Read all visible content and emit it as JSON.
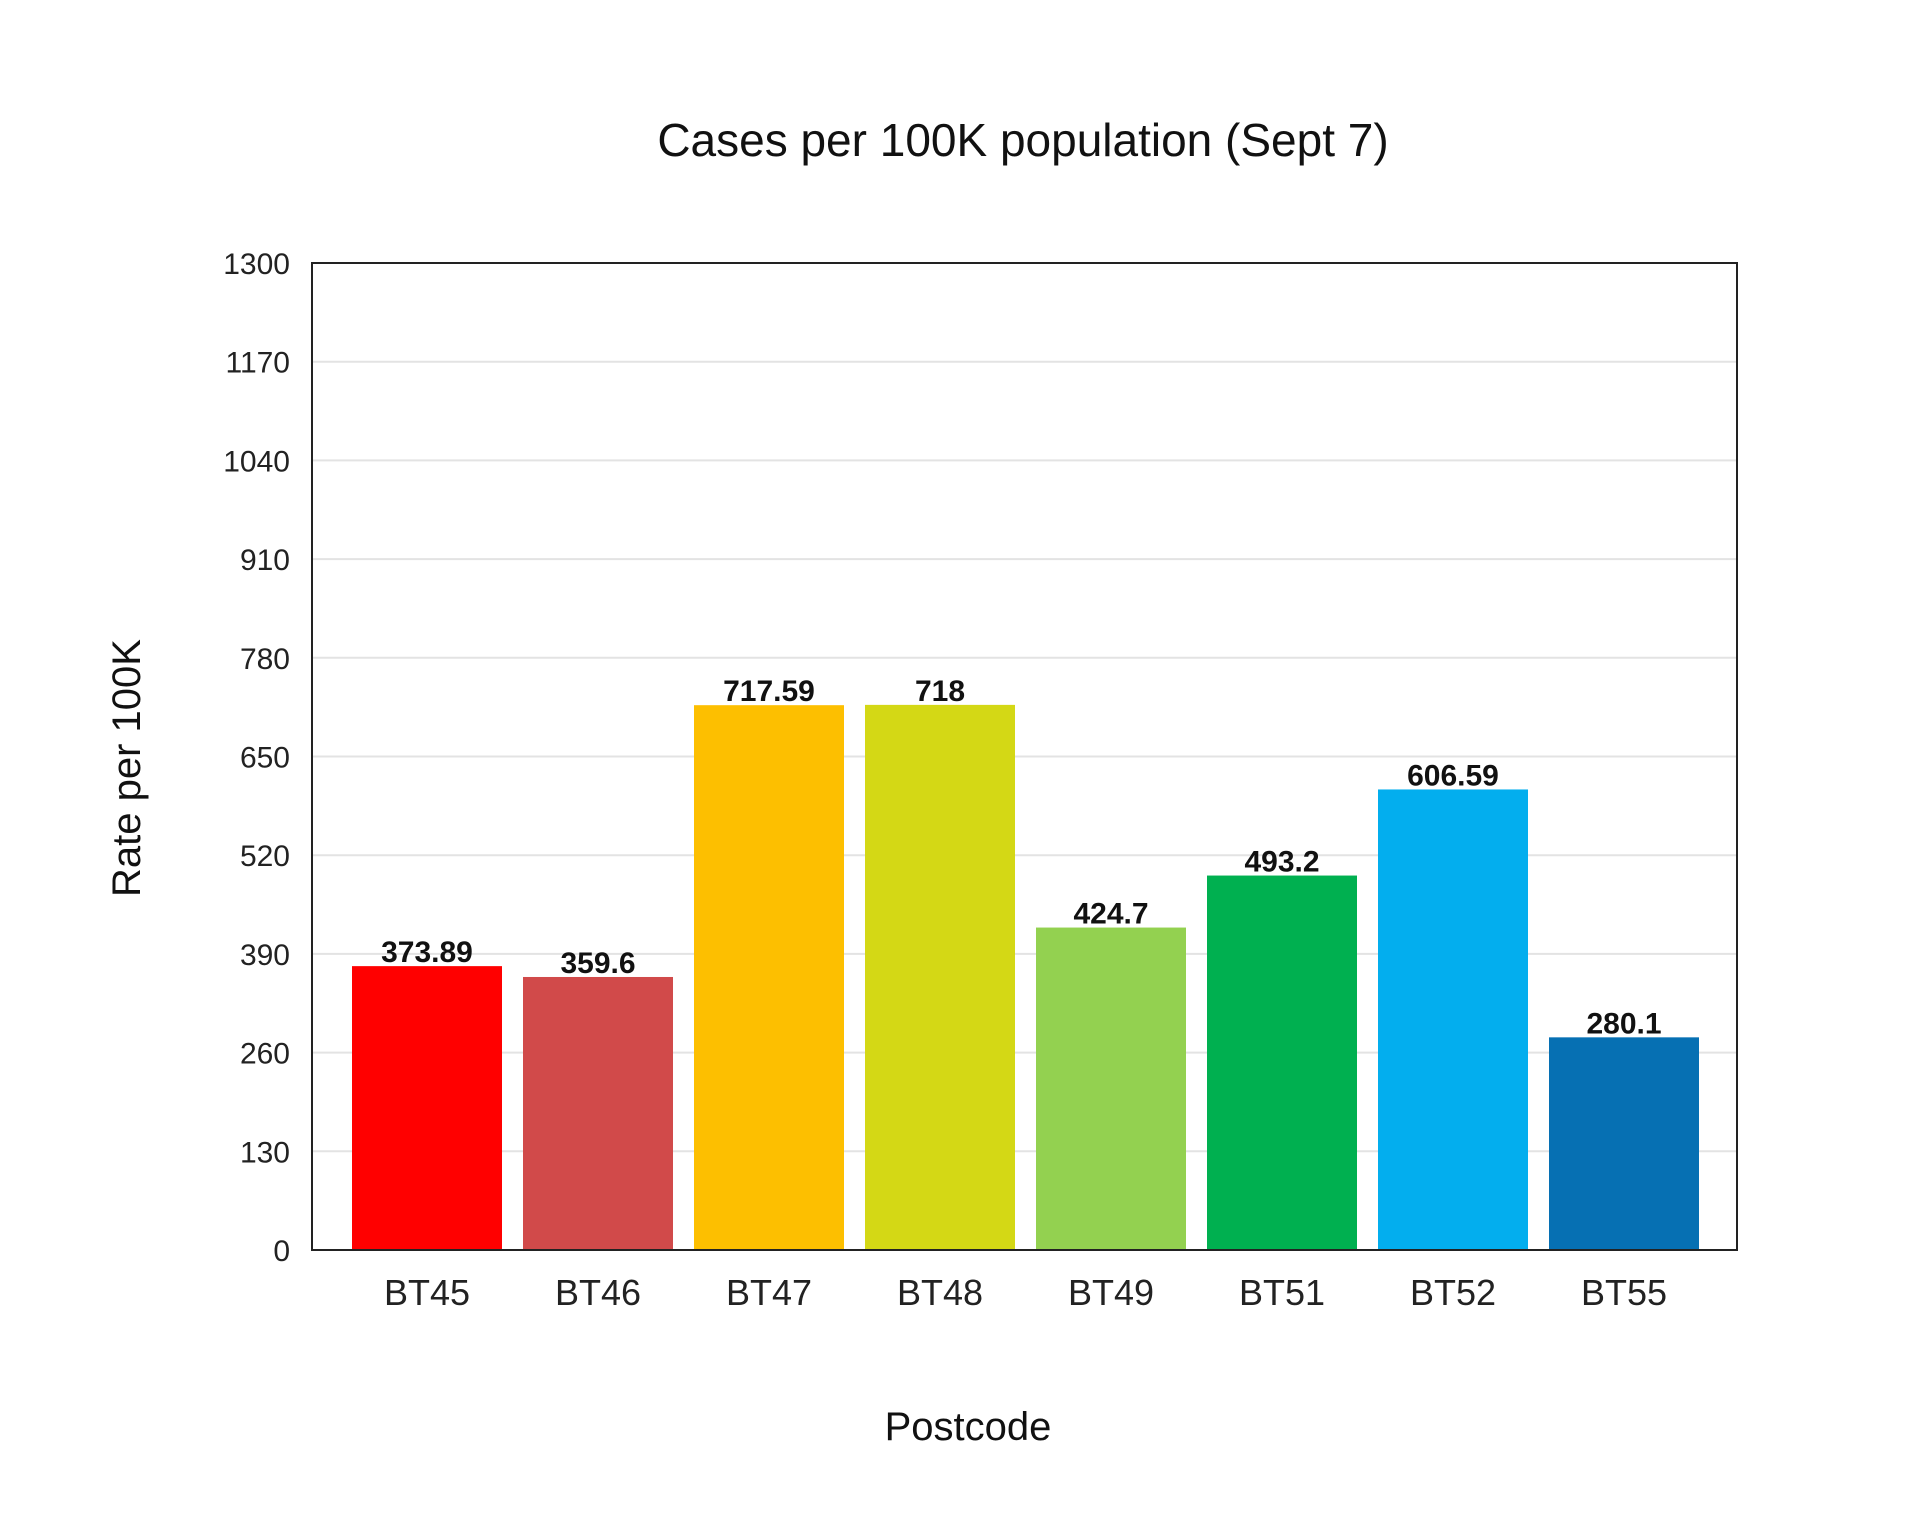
{
  "chart_data": {
    "type": "bar",
    "title": "Cases per 100K population (Sept 7)",
    "xlabel": "Postcode",
    "ylabel": "Rate per 100K",
    "categories": [
      "BT45",
      "BT46",
      "BT47",
      "BT48",
      "BT49",
      "BT51",
      "BT52",
      "BT55"
    ],
    "values": [
      373.89,
      359.6,
      717.59,
      718,
      424.7,
      493.2,
      606.59,
      280.1
    ],
    "data_labels": [
      "373.89",
      "359.6",
      "717.59",
      "718",
      "424.7",
      "493.2",
      "606.59",
      "280.1"
    ],
    "colors": [
      "#ff0000",
      "#d14a4a",
      "#fdbf00",
      "#d4d815",
      "#93d150",
      "#00b050",
      "#03aeee",
      "#0670b3"
    ],
    "ylim": [
      0,
      1300
    ],
    "yticks": [
      "0",
      "130",
      "260",
      "390",
      "520",
      "650",
      "780",
      "910",
      "1040",
      "1170",
      "1300"
    ],
    "grid": true,
    "legend": "none"
  }
}
